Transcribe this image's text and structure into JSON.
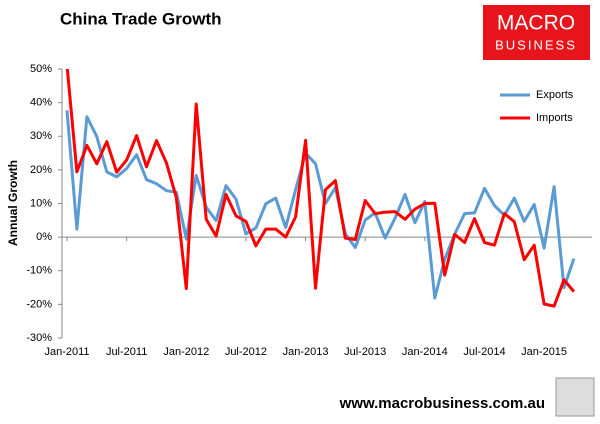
{
  "chart_data": {
    "type": "line",
    "title": "China Trade Growth",
    "y_label": "Annual Growth",
    "categories": [
      "Jan-2011",
      null,
      null,
      null,
      null,
      null,
      "Jul-2011",
      null,
      null,
      null,
      null,
      null,
      "Jan-2012",
      null,
      null,
      null,
      null,
      null,
      "Jul-2012",
      null,
      null,
      null,
      null,
      null,
      "Jan-2013",
      null,
      null,
      null,
      null,
      null,
      "Jul-2013",
      null,
      null,
      null,
      null,
      null,
      "Jan-2014",
      null,
      null,
      null,
      null,
      null,
      "Jul-2014",
      null,
      null,
      null,
      null,
      null,
      "Jan-2015",
      null,
      null,
      null
    ],
    "series": [
      {
        "name": "Exports",
        "color": "#5b9bd5",
        "values": [
          37.7,
          2.4,
          35.8,
          29.9,
          19.4,
          17.9,
          20.4,
          24.5,
          17.1,
          15.9,
          13.8,
          13.4,
          -0.5,
          18.4,
          8.9,
          4.9,
          15.3,
          11.3,
          1.0,
          2.7,
          9.9,
          11.6,
          2.9,
          14.1,
          25.0,
          21.8,
          10.0,
          14.7,
          1.0,
          -3.1,
          5.1,
          7.2,
          -0.3,
          5.6,
          12.7,
          4.3,
          10.6,
          -18.1,
          -6.6,
          0.9,
          7.0,
          7.2,
          14.5,
          9.4,
          6.5,
          11.6,
          4.7,
          9.7,
          -3.3,
          15.0,
          -15.0,
          -6.4
        ]
      },
      {
        "name": "Imports",
        "color": "#ff0000",
        "values": [
          51.0,
          19.4,
          27.3,
          21.8,
          28.4,
          19.3,
          22.9,
          30.2,
          20.9,
          28.7,
          22.1,
          11.8,
          -15.3,
          39.6,
          5.3,
          0.3,
          12.7,
          6.3,
          4.7,
          -2.6,
          2.4,
          2.4,
          0.0,
          6.0,
          28.8,
          -15.2,
          14.1,
          16.8,
          -0.3,
          -0.7,
          10.9,
          7.0,
          7.4,
          7.6,
          5.3,
          8.3,
          10.0,
          10.1,
          -11.3,
          0.8,
          -1.6,
          5.5,
          -1.6,
          -2.4,
          7.0,
          4.6,
          -6.7,
          -2.4,
          -19.9,
          -20.5,
          -12.7,
          -16.2
        ]
      }
    ],
    "ylim": [
      -30,
      50
    ],
    "yticks": [
      {
        "value": -30,
        "label": "-30%"
      },
      {
        "value": -20,
        "label": "-20%"
      },
      {
        "value": -10,
        "label": "-10%"
      },
      {
        "value": 0,
        "label": "0%"
      },
      {
        "value": 10,
        "label": "10%"
      },
      {
        "value": 20,
        "label": "20%"
      },
      {
        "value": 30,
        "label": "30%"
      },
      {
        "value": 40,
        "label": "40%"
      },
      {
        "value": 50,
        "label": "50%"
      }
    ],
    "grid": false,
    "legend": "top-right",
    "logo": [
      "MACRO",
      "BUSINESS"
    ],
    "source": "www.macrobusiness.com.au"
  }
}
